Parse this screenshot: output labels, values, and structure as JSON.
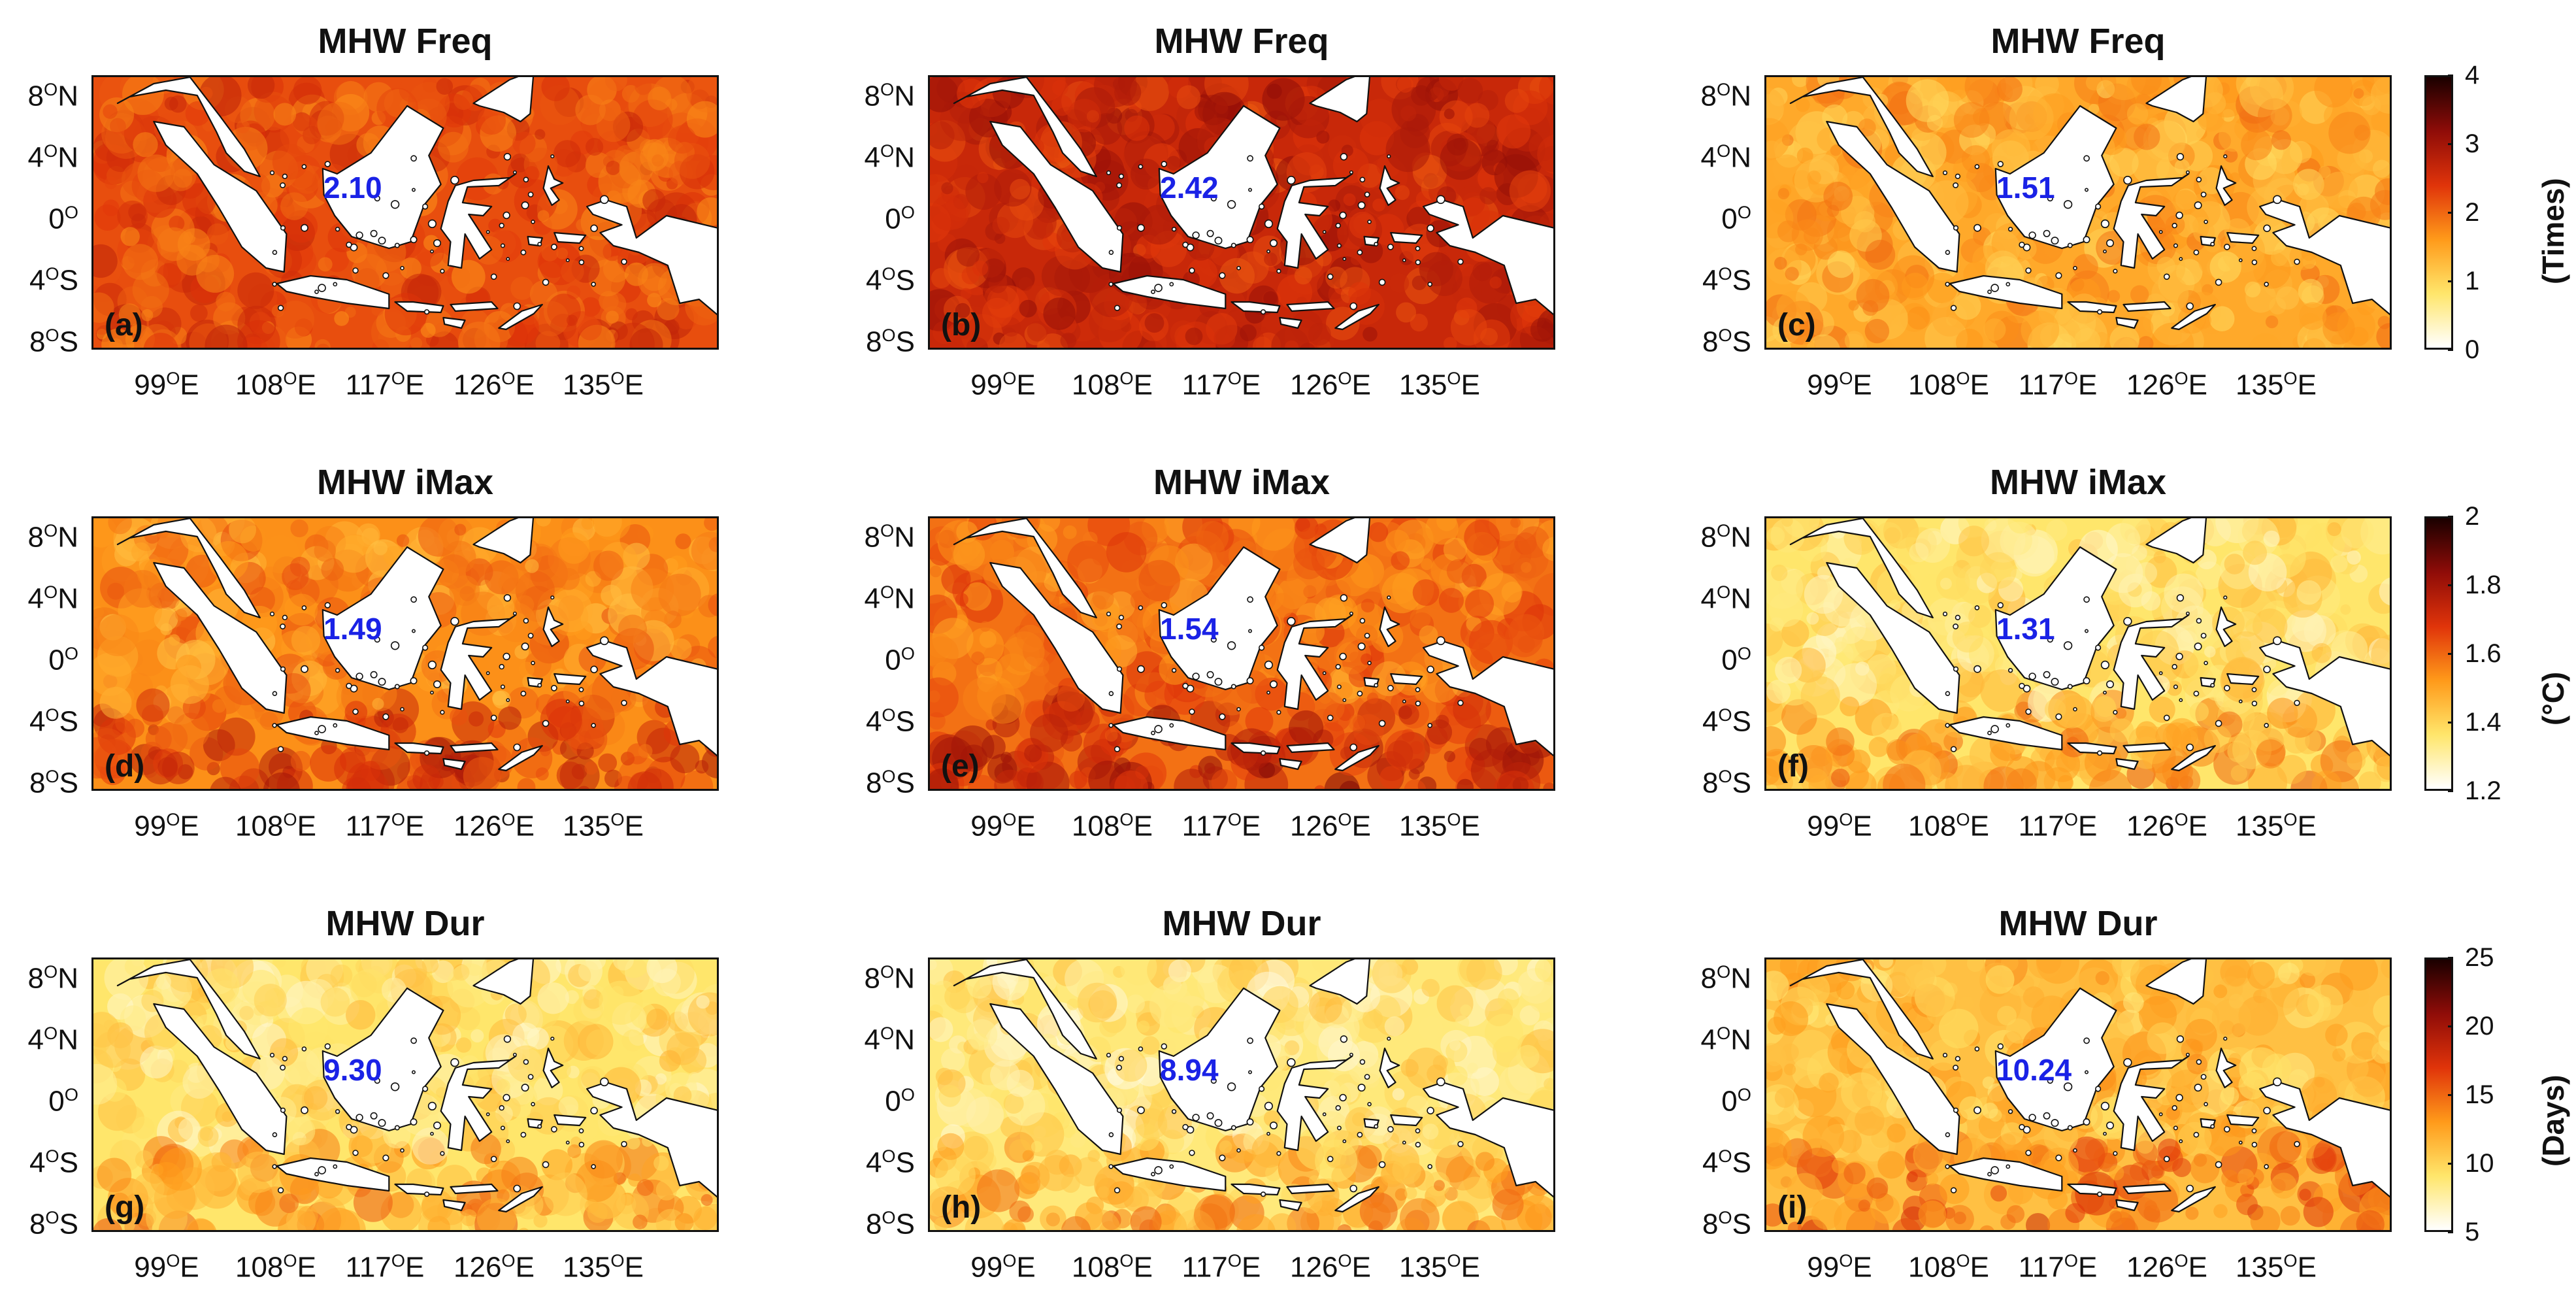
{
  "figure": {
    "rows": [
      {
        "title": "MHW Freq",
        "colorbar": {
          "label": "(Times)",
          "ticks": [
            "4",
            "3",
            "2",
            "1",
            "0"
          ],
          "range": [
            0,
            4
          ],
          "colors": [
            "#ffffff",
            "#ffe66b",
            "#ff9a1a",
            "#e0340a",
            "#8f0c08",
            "#1a0000"
          ]
        },
        "panels": [
          {
            "letter": "(a)",
            "mean": "2.10",
            "level": 0.55
          },
          {
            "letter": "(b)",
            "mean": "2.42",
            "level": 0.66
          },
          {
            "letter": "(c)",
            "mean": "1.51",
            "level": 0.36
          }
        ]
      },
      {
        "title": "MHW iMax",
        "colorbar": {
          "label": "(°C)",
          "ticks": [
            "2",
            "1.8",
            "1.6",
            "1.4",
            "1.2"
          ],
          "range": [
            1.2,
            2.0
          ],
          "colors": [
            "#ffffff",
            "#ffe66b",
            "#ff9a1a",
            "#e0340a",
            "#8f0c08",
            "#1a0000"
          ]
        },
        "panels": [
          {
            "letter": "(d)",
            "mean": "1.49",
            "level": 0.42
          },
          {
            "letter": "(e)",
            "mean": "1.54",
            "level": 0.48
          },
          {
            "letter": "(f)",
            "mean": "1.31",
            "level": 0.2
          }
        ]
      },
      {
        "title": "MHW Dur",
        "colorbar": {
          "label": "(Days)",
          "ticks": [
            "25",
            "20",
            "15",
            "10",
            "5"
          ],
          "range": [
            5,
            25
          ],
          "colors": [
            "#ffffff",
            "#ffe66b",
            "#ff9a1a",
            "#e0340a",
            "#8f0c08",
            "#1a0000"
          ]
        },
        "panels": [
          {
            "letter": "(g)",
            "mean": "9.30",
            "level": 0.2
          },
          {
            "letter": "(h)",
            "mean": "8.94",
            "level": 0.18
          },
          {
            "letter": "(i)",
            "mean": "10.24",
            "level": 0.3
          }
        ]
      }
    ],
    "lat_ticks": [
      {
        "deg": "8",
        "hemi": "N"
      },
      {
        "deg": "4",
        "hemi": "N"
      },
      {
        "deg": "0",
        "hemi": ""
      },
      {
        "deg": "4",
        "hemi": "S"
      },
      {
        "deg": "8",
        "hemi": "S"
      }
    ],
    "lon_ticks": [
      {
        "deg": "99",
        "hemi": "E"
      },
      {
        "deg": "108",
        "hemi": "E"
      },
      {
        "deg": "117",
        "hemi": "E"
      },
      {
        "deg": "126",
        "hemi": "E"
      },
      {
        "deg": "135",
        "hemi": "E"
      }
    ],
    "degree_symbol": "O",
    "land_color": "#ffffff",
    "coast_color": "#111111"
  }
}
